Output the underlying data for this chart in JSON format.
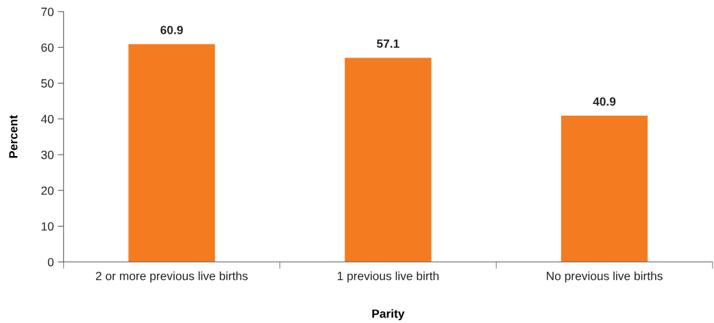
{
  "chart_data": {
    "type": "bar",
    "xlabel": "Parity",
    "ylabel": "Percent",
    "categories": [
      "2 or more previous live births",
      "1 previous live birth",
      "No previous live births"
    ],
    "values": [
      60.9,
      57.1,
      40.9
    ],
    "color": "#f47b20",
    "ylim": [
      0,
      70
    ],
    "yticks": [
      0,
      10,
      20,
      30,
      40,
      50,
      60,
      70
    ],
    "grid": false,
    "data_labels": true
  }
}
